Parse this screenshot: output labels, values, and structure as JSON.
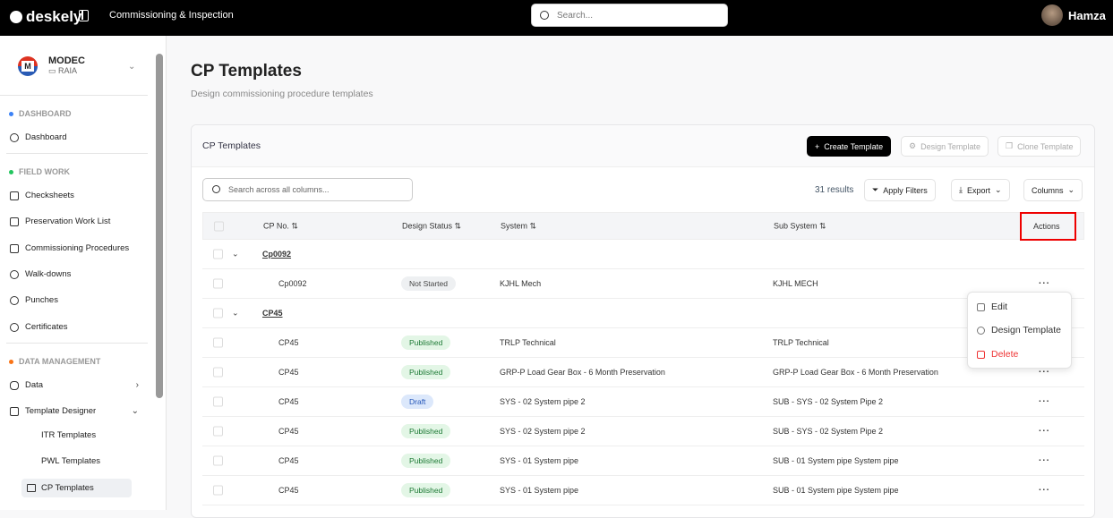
{
  "topbar": {
    "brand": "deskely",
    "app_title": "Commissioning & Inspection",
    "search_placeholder": "Search...",
    "user": "Hamza"
  },
  "sidebar": {
    "org": "MODEC",
    "project": "RAIA",
    "sections": [
      {
        "label": "DASHBOARD",
        "color": "#3b82f6"
      },
      {
        "label": "FIELD WORK",
        "color": "#22c55e"
      },
      {
        "label": "DATA MANAGEMENT",
        "color": "#f97316"
      }
    ],
    "items": [
      "Dashboard",
      "Checksheets",
      "Preservation Work List",
      "Commissioning Procedures",
      "Walk-downs",
      "Punches",
      "Certificates",
      "Data",
      "Template Designer"
    ],
    "sub_items": [
      "ITR Templates",
      "PWL Templates",
      "CP Templates"
    ]
  },
  "page": {
    "title": "CP Templates",
    "subtitle": "Design commissioning procedure templates"
  },
  "card": {
    "title": "CP Templates",
    "create": "Create Template",
    "design": "Design Template",
    "clone": "Clone Template",
    "search_placeholder": "Search across all columns...",
    "results": "31 results",
    "filters": "Apply Filters",
    "export": "Export",
    "columns": "Columns"
  },
  "table": {
    "headers": [
      "CP No.",
      "Design Status",
      "System",
      "Sub System",
      "Actions"
    ],
    "rows": [
      {
        "group": true,
        "cp": "Cp0092"
      },
      {
        "cp": "Cp0092",
        "status": "Not Started",
        "system": "KJHL Mech",
        "subsystem": "KJHL MECH"
      },
      {
        "group": true,
        "cp": "CP45"
      },
      {
        "cp": "CP45",
        "status": "Published",
        "system": "TRLP Technical",
        "subsystem": "TRLP Technical"
      },
      {
        "cp": "CP45",
        "status": "Published",
        "system": "GRP-P Load Gear Box - 6 Month Preservation",
        "subsystem": "GRP-P Load Gear Box - 6 Month Preservation"
      },
      {
        "cp": "CP45",
        "status": "Draft",
        "system": "SYS - 02 System pipe 2",
        "subsystem": "SUB - SYS - 02 System Pipe 2"
      },
      {
        "cp": "CP45",
        "status": "Published",
        "system": "SYS - 02 System pipe 2",
        "subsystem": "SUB - SYS - 02 System Pipe 2"
      },
      {
        "cp": "CP45",
        "status": "Published",
        "system": "SYS - 01 System pipe",
        "subsystem": "SUB - 01 System pipe System pipe"
      },
      {
        "cp": "CP45",
        "status": "Published",
        "system": "SYS - 01 System pipe",
        "subsystem": "SUB - 01 System pipe System pipe"
      }
    ]
  },
  "menu": {
    "items": [
      "Edit",
      "Design Template",
      "Delete"
    ]
  }
}
